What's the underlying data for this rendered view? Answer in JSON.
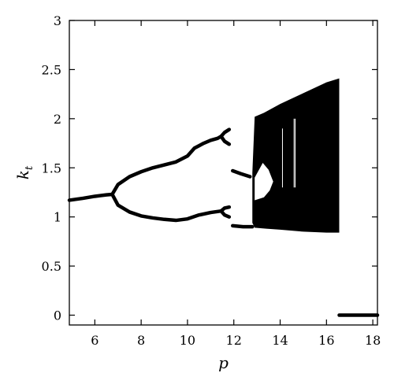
{
  "chart_data": {
    "type": "scatter",
    "title": "",
    "xlabel": "p",
    "ylabel": "k",
    "ylabel_subscript": "t",
    "xlim": [
      4.9,
      18.2
    ],
    "ylim": [
      -0.1,
      3.0
    ],
    "xticks": [
      6,
      8,
      10,
      12,
      14,
      16,
      18
    ],
    "yticks": [
      0,
      0.5,
      1,
      1.5,
      2,
      2.5,
      3
    ],
    "xtick_labels": [
      "6",
      "8",
      "10",
      "12",
      "14",
      "16",
      "18"
    ],
    "ytick_labels": [
      "0",
      "0.5",
      "1",
      "1.5",
      "2",
      "2.5",
      "3"
    ],
    "grid": false,
    "legend": "none",
    "color": "#000000",
    "series": [
      {
        "values": [
          {
            "x": 4.9,
            "y": 1.17
          },
          {
            "x": 5.5,
            "y": 1.19
          },
          {
            "x": 6.0,
            "y": 1.21
          },
          {
            "x": 6.5,
            "y": 1.225
          },
          {
            "x": 6.75,
            "y": 1.23
          }
        ]
      },
      {
        "values": [
          {
            "x": 6.75,
            "y": 1.23
          },
          {
            "x": 7.0,
            "y": 1.33
          },
          {
            "x": 7.5,
            "y": 1.41
          },
          {
            "x": 8.0,
            "y": 1.46
          },
          {
            "x": 8.5,
            "y": 1.5
          },
          {
            "x": 9.0,
            "y": 1.53
          },
          {
            "x": 9.5,
            "y": 1.56
          },
          {
            "x": 10.0,
            "y": 1.62
          },
          {
            "x": 10.3,
            "y": 1.7
          },
          {
            "x": 10.7,
            "y": 1.75
          },
          {
            "x": 11.0,
            "y": 1.78
          },
          {
            "x": 11.3,
            "y": 1.8
          },
          {
            "x": 11.45,
            "y": 1.82
          }
        ]
      },
      {
        "values": [
          {
            "x": 6.75,
            "y": 1.23
          },
          {
            "x": 7.0,
            "y": 1.12
          },
          {
            "x": 7.5,
            "y": 1.05
          },
          {
            "x": 8.0,
            "y": 1.01
          },
          {
            "x": 8.5,
            "y": 0.99
          },
          {
            "x": 9.0,
            "y": 0.975
          },
          {
            "x": 9.5,
            "y": 0.965
          },
          {
            "x": 10.0,
            "y": 0.98
          },
          {
            "x": 10.5,
            "y": 1.02
          },
          {
            "x": 11.0,
            "y": 1.045
          },
          {
            "x": 11.45,
            "y": 1.06
          }
        ]
      },
      {
        "values": [
          {
            "x": 11.45,
            "y": 1.82
          },
          {
            "x": 11.6,
            "y": 1.86
          },
          {
            "x": 11.8,
            "y": 1.89
          }
        ]
      },
      {
        "values": [
          {
            "x": 11.45,
            "y": 1.82
          },
          {
            "x": 11.6,
            "y": 1.77
          },
          {
            "x": 11.8,
            "y": 1.74
          }
        ]
      },
      {
        "values": [
          {
            "x": 11.45,
            "y": 1.06
          },
          {
            "x": 11.6,
            "y": 1.09
          },
          {
            "x": 11.8,
            "y": 1.1
          }
        ]
      },
      {
        "values": [
          {
            "x": 11.45,
            "y": 1.06
          },
          {
            "x": 11.6,
            "y": 1.02
          },
          {
            "x": 11.8,
            "y": 1.0
          }
        ]
      },
      {
        "values": [
          {
            "x": 11.95,
            "y": 1.47
          },
          {
            "x": 12.3,
            "y": 1.44
          },
          {
            "x": 12.7,
            "y": 1.41
          }
        ]
      },
      {
        "values": [
          {
            "x": 11.95,
            "y": 0.91
          },
          {
            "x": 12.4,
            "y": 0.9
          },
          {
            "x": 12.8,
            "y": 0.9
          }
        ]
      },
      {
        "values": [
          {
            "x": 16.55,
            "y": 0.0
          },
          {
            "x": 18.2,
            "y": 0.0
          }
        ]
      }
    ],
    "chaotic_band": {
      "top": [
        {
          "x": 12.8,
          "y": 1.45
        },
        {
          "x": 12.9,
          "y": 2.02
        },
        {
          "x": 13.3,
          "y": 2.06
        },
        {
          "x": 14.0,
          "y": 2.15
        },
        {
          "x": 15.0,
          "y": 2.26
        },
        {
          "x": 16.0,
          "y": 2.37
        },
        {
          "x": 16.55,
          "y": 2.41
        }
      ],
      "bottom": [
        {
          "x": 16.55,
          "y": 0.84
        },
        {
          "x": 16.0,
          "y": 0.84
        },
        {
          "x": 15.0,
          "y": 0.85
        },
        {
          "x": 14.0,
          "y": 0.87
        },
        {
          "x": 13.4,
          "y": 0.88
        },
        {
          "x": 12.9,
          "y": 0.89
        },
        {
          "x": 12.8,
          "y": 0.94
        }
      ],
      "notch": [
        {
          "x": 12.9,
          "y": 1.4
        },
        {
          "x": 13.25,
          "y": 1.55
        },
        {
          "x": 13.5,
          "y": 1.48
        },
        {
          "x": 13.7,
          "y": 1.36
        },
        {
          "x": 13.55,
          "y": 1.27
        },
        {
          "x": 13.3,
          "y": 1.2
        },
        {
          "x": 12.9,
          "y": 1.17
        }
      ],
      "gaps": [
        {
          "x": 14.1,
          "y_min": 1.3,
          "y_max": 1.9
        },
        {
          "x": 14.6,
          "y_min": 1.3,
          "y_max": 2.0
        },
        {
          "x": 14.65,
          "y_min": 1.3,
          "y_max": 2.0
        }
      ]
    }
  }
}
